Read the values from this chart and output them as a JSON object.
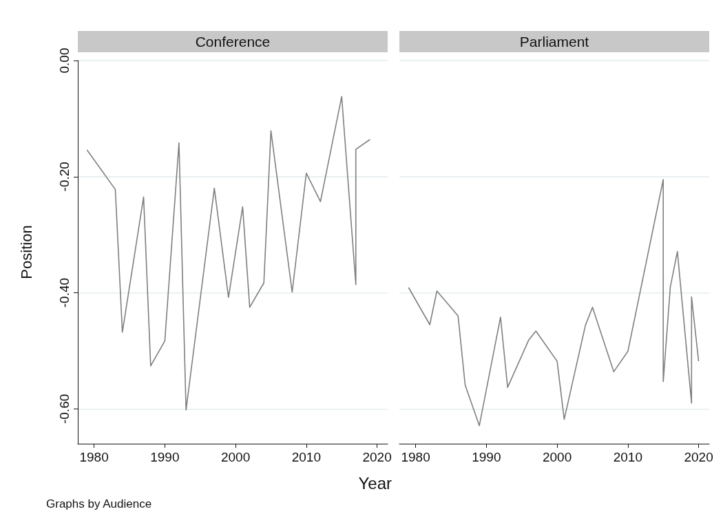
{
  "chart_data": [
    {
      "type": "line",
      "title": "Conference",
      "xlabel": "Year",
      "ylabel": "Position",
      "annotations": [
        "Graphs by Audience"
      ],
      "x": [
        1979,
        1983,
        1984,
        1987,
        1988,
        1990,
        1992,
        1993,
        1997,
        1999,
        2001,
        2002,
        2004,
        2005,
        2008,
        2010,
        2012,
        2015,
        2017,
        2017,
        2019
      ],
      "series": [
        {
          "color": "#7f7f7f",
          "values": [
            -0.154,
            -0.222,
            -0.468,
            -0.235,
            -0.526,
            -0.483,
            -0.142,
            -0.602,
            -0.22,
            -0.408,
            -0.252,
            -0.425,
            -0.383,
            -0.121,
            -0.399,
            -0.194,
            -0.243,
            -0.062,
            -0.386,
            -0.153,
            -0.136
          ]
        }
      ],
      "xlim": [
        1977.7,
        2021.5
      ],
      "xticks": [
        1980,
        1990,
        2000,
        2010,
        2020
      ],
      "ylim": [
        -0.66,
        0
      ],
      "yticks": [
        {
          "value": 0,
          "label": "0.00"
        },
        {
          "value": -0.2,
          "label": "-0.20"
        },
        {
          "value": -0.4,
          "label": "-0.40"
        },
        {
          "value": -0.6,
          "label": "-0.60"
        }
      ],
      "grid": "y",
      "marker": "none"
    },
    {
      "type": "line",
      "title": "Parliament",
      "tick_labels": "x",
      "x": [
        1979,
        1982,
        1983,
        1986,
        1987,
        1989,
        1992,
        1993,
        1996,
        1997,
        2000,
        2001,
        2004,
        2005,
        2008,
        2010,
        2015,
        2015,
        2016,
        2017,
        2019,
        2019,
        2020
      ],
      "series": [
        {
          "color": "#7f7f7f",
          "values": [
            -0.391,
            -0.455,
            -0.397,
            -0.44,
            -0.559,
            -0.629,
            -0.442,
            -0.563,
            -0.481,
            -0.466,
            -0.518,
            -0.618,
            -0.456,
            -0.425,
            -0.536,
            -0.501,
            -0.205,
            -0.553,
            -0.39,
            -0.329,
            -0.59,
            -0.407,
            -0.518
          ]
        }
      ],
      "xlim": [
        1977.7,
        2021.5
      ],
      "xticks": [
        1980,
        1990,
        2000,
        2010,
        2020
      ],
      "ylim": [
        -0.66,
        0
      ],
      "yticks": [
        0,
        -0.2,
        -0.4,
        -0.6
      ],
      "grid": "y",
      "marker": "none"
    }
  ]
}
